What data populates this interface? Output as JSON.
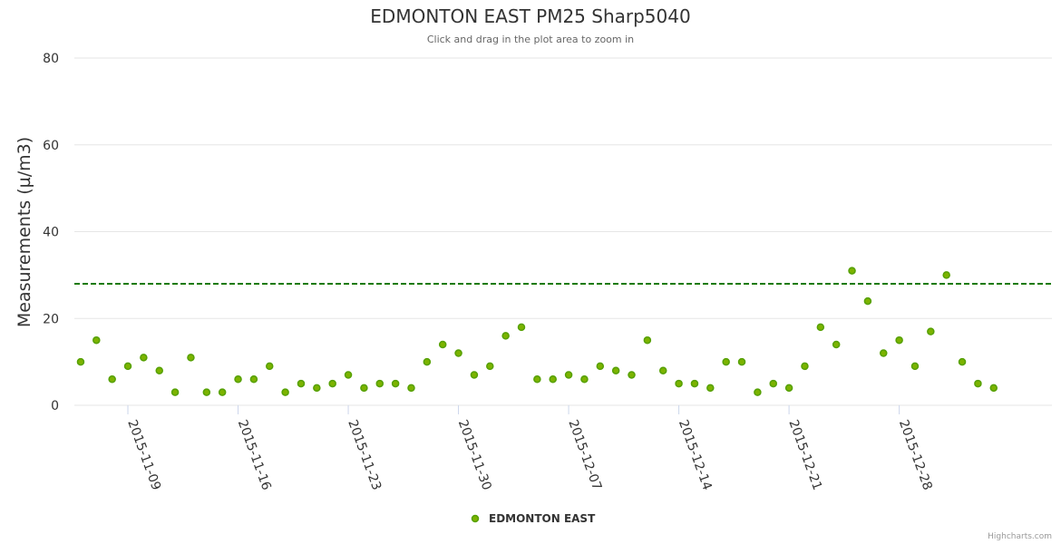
{
  "chart_data": {
    "type": "scatter",
    "title": "EDMONTON EAST PM25 Sharp5040",
    "subtitle": "Click and drag in the plot area to zoom in",
    "ylabel": "Measurements (µ/m3)",
    "xlabel": "",
    "ylim": [
      0,
      80
    ],
    "yticks": [
      0,
      20,
      40,
      60,
      80
    ],
    "x_start_date": "2015-11-03",
    "x_range_days": [
      2.6,
      64.7
    ],
    "x_tick_labels": [
      "2015-11-09",
      "2015-11-16",
      "2015-11-23",
      "2015-11-30",
      "2015-12-07",
      "2015-12-14",
      "2015-12-21",
      "2015-12-28"
    ],
    "x_tick_days": [
      6,
      13,
      20,
      27,
      34,
      41,
      48,
      55
    ],
    "threshold": 28,
    "series": [
      {
        "name": "EDMONTON EAST",
        "color": "#7cb300",
        "start_day": 3,
        "values": [
          10,
          15,
          6,
          9,
          11,
          8,
          3,
          11,
          3,
          3,
          6,
          6,
          9,
          3,
          5,
          4,
          5,
          7,
          4,
          5,
          5,
          4,
          10,
          14,
          12,
          7,
          9,
          16,
          18,
          6,
          6,
          7,
          6,
          9,
          8,
          7,
          15,
          8,
          5,
          5,
          4,
          10,
          10,
          3,
          5,
          4,
          9,
          18,
          14,
          31,
          24,
          12,
          15,
          9,
          17,
          30,
          10,
          5,
          4
        ]
      }
    ]
  },
  "legend": {
    "label": "EDMONTON EAST"
  },
  "credits": "Highcharts.com"
}
